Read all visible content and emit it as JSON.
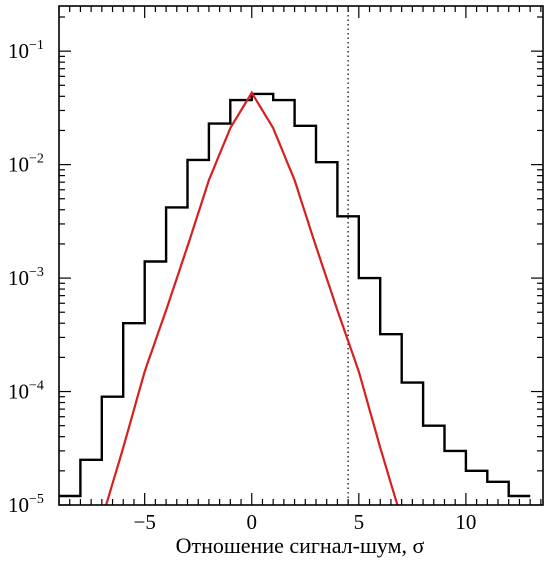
{
  "chart_data": {
    "type": "line",
    "xlabel": "Отношение сигнал-шум, σ",
    "ylabel": "",
    "xlim": [
      -9,
      13.6
    ],
    "ylim": [
      1e-05,
      0.25
    ],
    "yscale": "log",
    "grid": false,
    "x_ticks": [
      {
        "value": -5,
        "label": "−5"
      },
      {
        "value": 0,
        "label": "0"
      },
      {
        "value": 5,
        "label": "5"
      },
      {
        "value": 10,
        "label": "10"
      }
    ],
    "y_ticks": [
      {
        "value": 1e-05,
        "base": "10",
        "exp": "−5"
      },
      {
        "value": 0.0001,
        "base": "10",
        "exp": "−4"
      },
      {
        "value": 0.001,
        "base": "10",
        "exp": "−3"
      },
      {
        "value": 0.01,
        "base": "10",
        "exp": "−2"
      },
      {
        "value": 0.1,
        "base": "10",
        "exp": "−1"
      }
    ],
    "threshold_line": {
      "x": 4.5,
      "style": "dotted",
      "color": "#000000"
    },
    "series": [
      {
        "kind": "histogram",
        "color": "#000000",
        "bin_edges": [
          -9.0,
          -8.0,
          -7.0,
          -6.0,
          -5.0,
          -4.0,
          -3.0,
          -2.0,
          -1.0,
          0.0,
          1.0,
          2.0,
          3.0,
          4.0,
          5.0,
          6.0,
          7.0,
          8.0,
          9.0,
          10.0,
          11.0,
          12.0,
          13.0
        ],
        "values": [
          1.2e-05,
          2.5e-05,
          9e-05,
          0.0004,
          0.0014,
          0.0042,
          0.011,
          0.023,
          0.037,
          0.042,
          0.037,
          0.022,
          0.0105,
          0.0035,
          0.001,
          0.00032,
          0.00012,
          5e-05,
          3e-05,
          2e-05,
          1.6e-05,
          1.2e-05
        ]
      },
      {
        "kind": "gaussian_fit",
        "color": "#d71f1f",
        "x": [
          -6.8,
          -6.0,
          -5.0,
          -4.0,
          -3.0,
          -2.0,
          -1.0,
          0.0,
          1.0,
          2.0,
          3.0,
          4.0,
          5.0,
          6.0,
          6.8
        ],
        "y": [
          1e-05,
          3.2e-05,
          0.00015,
          0.00052,
          0.0019,
          0.0073,
          0.021,
          0.043,
          0.021,
          0.0073,
          0.0019,
          0.00052,
          0.00015,
          3.2e-05,
          1e-05
        ]
      }
    ]
  }
}
